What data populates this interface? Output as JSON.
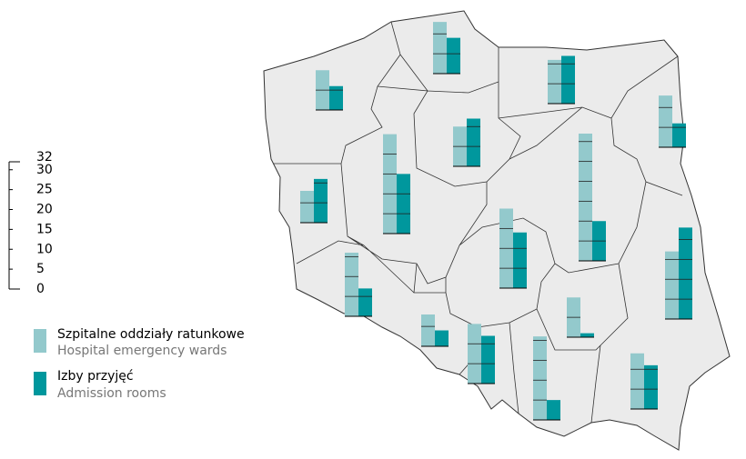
{
  "chart_data": {
    "type": "map-bars",
    "categories": [
      null,
      null,
      null,
      null,
      null,
      null,
      null,
      null,
      null,
      null,
      null,
      null,
      null,
      null,
      null,
      null
    ],
    "series": [
      {
        "name": "Szpitalne oddziały ratunkowe",
        "name_en": "Hospital emergency wards",
        "color": "#93c9cc",
        "values": [
          13,
          10,
          11,
          13,
          10,
          25,
          8,
          32,
          20,
          17,
          16,
          8,
          15,
          10,
          21,
          14
        ]
      },
      {
        "name": "Izby przyjęć",
        "name_en": "Admission rooms",
        "color": "#00979d",
        "values": [
          9,
          6,
          12,
          6,
          12,
          15,
          11,
          10,
          14,
          23,
          7,
          4,
          12,
          1,
          5,
          11
        ]
      }
    ],
    "ylim": [
      0,
      32
    ],
    "yticks": [
      0,
      5,
      10,
      15,
      20,
      25,
      30,
      32
    ]
  }
}
